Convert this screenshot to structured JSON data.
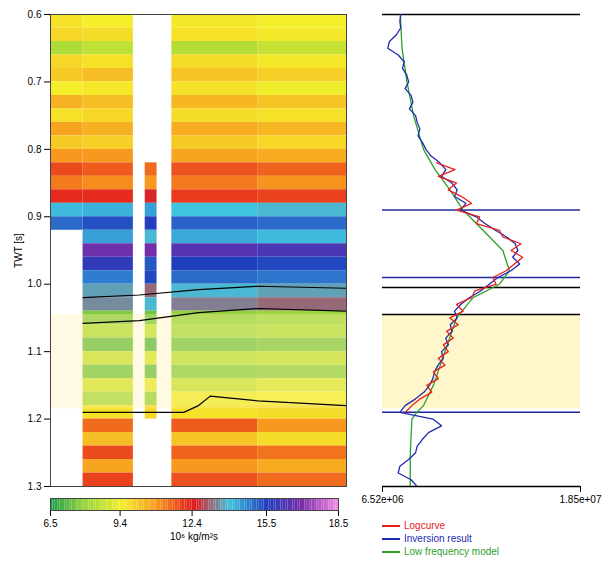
{
  "chart_data": {
    "type": "heatmap",
    "y_label": "TWT [s]",
    "ylim": [
      0.6,
      1.3
    ],
    "yticks": [
      0.6,
      0.7,
      0.8,
      0.9,
      {
        "value": 1,
        "label": "1.0"
      },
      1.1,
      1.2,
      1.3
    ],
    "highlight": [
      1.045,
      1.185
    ],
    "section": {
      "tick_labels": "y",
      "xlim": [
        0,
        10
      ],
      "twt_edges": [
        0.6,
        0.62,
        0.64,
        0.66,
        0.68,
        0.7,
        0.72,
        0.74,
        0.76,
        0.78,
        0.8,
        0.82,
        0.84,
        0.86,
        0.88,
        0.9,
        0.92,
        0.94,
        0.96,
        0.98,
        1.0,
        1.02,
        1.04,
        1.06,
        1.08,
        1.1,
        1.12,
        1.14,
        1.16,
        1.18,
        1.2,
        1.22,
        1.24,
        1.26,
        1.28,
        1.3
      ],
      "columns": [
        {
          "x": [
            0,
            1.1
          ],
          "values": [
            9.7,
            9.9,
            8.3,
            9.9,
            10.1,
            9.5,
            10.5,
            9.7,
            10.7,
            10.1,
            10.9,
            11.9,
            11.3,
            12.3,
            14.1,
            15.0,
            null,
            null,
            null,
            null,
            null,
            null,
            null,
            null,
            null,
            null,
            null,
            null,
            null,
            null,
            null,
            null,
            null,
            null,
            null
          ]
        },
        {
          "x": [
            1.1,
            2.8
          ],
          "values": [
            9.5,
            9.8,
            8.6,
            9.7,
            10.3,
            9.6,
            10.3,
            9.9,
            10.5,
            10.0,
            10.9,
            11.7,
            11.1,
            12.3,
            14.2,
            15.3,
            14.4,
            16.8,
            15.8,
            14.8,
            13.7,
            13.5,
            7.7,
            8.3,
            7.3,
            8.7,
            7.5,
            8.9,
            8.1,
            9.7,
            11.5,
            10.3,
            11.9,
            10.7,
            12.0
          ]
        },
        {
          "x": [
            3.2,
            3.6
          ],
          "values": [
            null,
            null,
            null,
            null,
            null,
            null,
            null,
            null,
            null,
            null,
            null,
            11.5,
            10.9,
            12.6,
            14.4,
            15.6,
            13.9,
            16.9,
            15.2,
            15.4,
            13.2,
            13.9,
            7.5,
            8.6,
            7.1,
            9.0,
            7.3,
            9.2,
            7.9,
            9.9,
            null,
            null,
            null,
            null,
            null
          ]
        },
        {
          "x": [
            4.1,
            7
          ],
          "values": [
            9.6,
            9.7,
            8.4,
            9.8,
            10.2,
            9.7,
            10.4,
            9.8,
            10.6,
            10.1,
            10.7,
            11.8,
            11.3,
            12.1,
            14.0,
            15.1,
            14.3,
            16.4,
            15.5,
            15.0,
            13.9,
            13.4,
            7.9,
            8.1,
            7.5,
            8.5,
            7.7,
            8.7,
            9.4,
            9.7,
            11.7,
            10.2,
            11.6,
            10.9,
            11.8
          ]
        },
        {
          "x": [
            7,
            10
          ],
          "values": [
            9.5,
            9.6,
            8.7,
            9.6,
            10.0,
            9.4,
            10.2,
            9.7,
            10.4,
            9.9,
            10.6,
            11.6,
            11.0,
            12.0,
            13.9,
            15.0,
            14.1,
            16.2,
            15.4,
            14.9,
            13.7,
            13.2,
            8.0,
            8.3,
            7.6,
            8.6,
            7.8,
            9.0,
            9.5,
            9.8,
            10.9,
            9.8,
            11.4,
            10.6,
            11.5
          ]
        }
      ],
      "horizons": [
        {
          "color": "#000000",
          "x": [
            1.1,
            3,
            5,
            7,
            10
          ],
          "twt": [
            1.02,
            1.016,
            1.008,
            1.003,
            1.006
          ]
        },
        {
          "color": "#000000",
          "x": [
            1.1,
            3,
            5,
            7,
            10
          ],
          "twt": [
            1.058,
            1.054,
            1.042,
            1.036,
            1.04
          ]
        },
        {
          "color": "#000000",
          "x": [
            1.1,
            4.5,
            5.0,
            5.4,
            7,
            10
          ],
          "twt": [
            1.19,
            1.19,
            1.18,
            1.166,
            1.173,
            1.18
          ]
        }
      ],
      "colorbar": {
        "label": "10⁶ kg/m²s",
        "lim": [
          6.5,
          18.5
        ],
        "ticks": [
          6.5,
          9.4,
          12.4,
          15.5,
          18.5
        ],
        "colors": [
          "#1e9e4a",
          "#9bd63c",
          "#f5ee2a",
          "#f7931e",
          "#e31a1c",
          "#3fc3df",
          "#1f3fbf",
          "#7a2da8",
          "#f28ce6"
        ]
      }
    },
    "log_panel": {
      "tick_labels": "x",
      "legend": "bottom",
      "xlim": [
        6520000.0,
        18500000.0
      ],
      "xticks": [
        {
          "value": 6520000.0,
          "label": "6.52e+06"
        },
        {
          "value": 18500000.0,
          "label": "1.85e+07"
        }
      ],
      "markers": [
        {
          "twt": 0.6,
          "color": "#000000"
        },
        {
          "twt": 0.89,
          "color": "#1f2a9e"
        },
        {
          "twt": 0.99,
          "color": "#1f2a9e"
        },
        {
          "twt": 1.005,
          "color": "#000000"
        },
        {
          "twt": 1.045,
          "color": "#000000"
        },
        {
          "twt": 1.19,
          "color": "#1f2a9e"
        },
        {
          "twt": 1.3,
          "color": "#000000"
        }
      ],
      "series": [
        {
          "name": "Logcurve",
          "color": "#e8211c",
          "type": "line",
          "twt": [
            0.82,
            0.83,
            0.84,
            0.85,
            0.86,
            0.87,
            0.88,
            0.89,
            0.9,
            0.91,
            0.92,
            0.93,
            0.94,
            0.95,
            0.96,
            0.97,
            0.98,
            0.99,
            1.0,
            1.01,
            1.02,
            1.03,
            1.04,
            1.05,
            1.06,
            1.07,
            1.08,
            1.09,
            1.1,
            1.11,
            1.12,
            1.13,
            1.14,
            1.15,
            1.16,
            1.17,
            1.18,
            1.19
          ],
          "values": [
            9800000.0,
            10900000.0,
            9900000.0,
            11000000.0,
            10500000.0,
            11300000.0,
            11900000.0,
            11000000.0,
            12400000.0,
            12200000.0,
            13600000.0,
            13800000.0,
            14900000.0,
            14300000.0,
            15000000.0,
            14500000.0,
            14000000.0,
            13200000.0,
            13400000.0,
            12100000.0,
            11900000.0,
            11000000.0,
            11400000.0,
            10600000.0,
            11100000.0,
            10400000.0,
            10800000.0,
            10200000.0,
            10500000.0,
            9900000.0,
            10300000.0,
            9600000.0,
            9900000.0,
            9200000.0,
            9500000.0,
            8800000.0,
            8300000.0,
            7900000.0
          ]
        },
        {
          "name": "Inversion result",
          "color": "#1f2ab0",
          "type": "line",
          "twt": [
            0.6,
            0.61,
            0.62,
            0.63,
            0.64,
            0.65,
            0.66,
            0.67,
            0.68,
            0.69,
            0.7,
            0.71,
            0.72,
            0.73,
            0.74,
            0.75,
            0.76,
            0.77,
            0.78,
            0.79,
            0.8,
            0.81,
            0.82,
            0.83,
            0.84,
            0.85,
            0.86,
            0.87,
            0.88,
            0.89,
            0.9,
            0.91,
            0.92,
            0.93,
            0.94,
            0.95,
            0.96,
            0.97,
            0.98,
            0.99,
            1.0,
            1.01,
            1.02,
            1.03,
            1.04,
            1.05,
            1.06,
            1.07,
            1.08,
            1.09,
            1.1,
            1.11,
            1.12,
            1.13,
            1.14,
            1.15,
            1.16,
            1.17,
            1.18,
            1.19,
            1.2,
            1.21,
            1.22,
            1.23,
            1.24,
            1.25,
            1.26,
            1.27,
            1.28,
            1.29,
            1.3
          ],
          "values": [
            7620000.0,
            7570000.0,
            7620000.0,
            7360000.0,
            6940000.0,
            6840000.0,
            7470000.0,
            7830000.0,
            7730000.0,
            7990000.0,
            8100000.0,
            7890000.0,
            8250000.0,
            8360000.0,
            8150000.0,
            8520000.0,
            8620000.0,
            8780000.0,
            8670000.0,
            8940000.0,
            9150000.0,
            9460000.0,
            9990000.0,
            10350000.0,
            10090000.0,
            10720000.0,
            11040000.0,
            10880000.0,
            11560000.0,
            11250000.0,
            12190000.0,
            12720000.0,
            13350000.0,
            14030000.0,
            14550000.0,
            14710000.0,
            14400000.0,
            14820000.0,
            14290000.0,
            13500000.0,
            12980000.0,
            12450000.0,
            11770000.0,
            11250000.0,
            10880000.0,
            11040000.0,
            10620000.0,
            10720000.0,
            10350000.0,
            10510000.0,
            10090000.0,
            10200000.0,
            9880000.0,
            9670000.0,
            9570000.0,
            9360000.0,
            9040000.0,
            8520000.0,
            7890000.0,
            7570000.0,
            9570000.0,
            10090000.0,
            9300000.0,
            8940000.0,
            8620000.0,
            8520000.0,
            8100000.0,
            7570000.0,
            7470000.0,
            8250000.0,
            8620000.0
          ]
        },
        {
          "name": "Low frequency model",
          "color": "#2ca02c",
          "type": "line",
          "twt": [
            0.6,
            0.65,
            0.7,
            0.75,
            0.8,
            0.83,
            0.86,
            0.89,
            0.92,
            0.95,
            0.98,
            1.0,
            1.02,
            1.05,
            1.1,
            1.15,
            1.18,
            1.19,
            1.2,
            1.25,
            1.3
          ],
          "values": [
            7600000.0,
            7700000.0,
            8000000.0,
            8400000.0,
            9000000.0,
            9700000.0,
            10600000.0,
            11400000.0,
            12600000.0,
            13800000.0,
            14200000.0,
            13600000.0,
            12000000.0,
            11000000.0,
            10300000.0,
            9600000.0,
            9000000.0,
            8600000.0,
            8300000.0,
            8200000.0,
            8200000.0
          ]
        }
      ]
    }
  }
}
